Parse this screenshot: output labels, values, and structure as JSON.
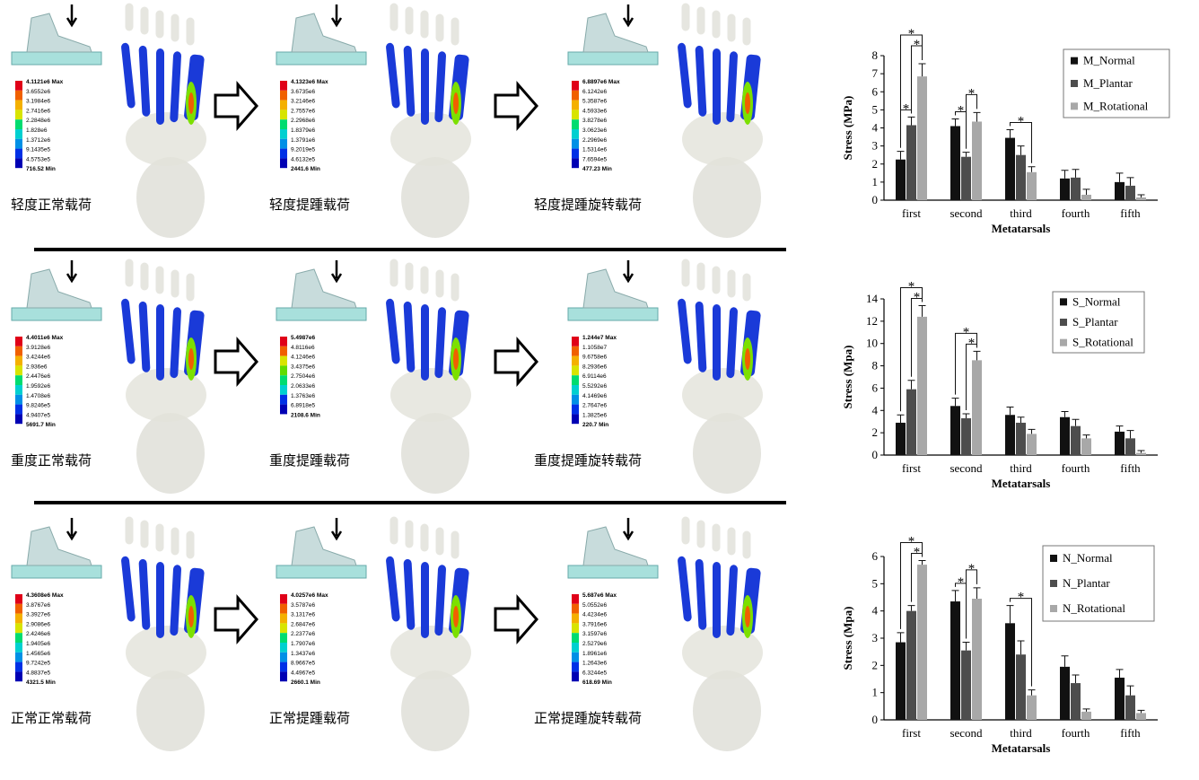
{
  "panels": [
    {
      "caption": "轻度正常载荷",
      "scale": [
        "4.1121e6 Max",
        "3.6552e6",
        "3.1984e6",
        "2.7416e6",
        "2.2848e6",
        "1.828e6",
        "1.3712e6",
        "9.1435e5",
        "4.5753e5",
        "716.52 Min"
      ]
    },
    {
      "caption": "轻度提踵载荷",
      "scale": [
        "4.1323e6 Max",
        "3.6735e6",
        "3.2146e6",
        "2.7557e6",
        "2.2968e6",
        "1.8379e6",
        "1.3791e6",
        "9.2019e5",
        "4.6132e5",
        "2441.6 Min"
      ]
    },
    {
      "caption": "轻度提踵旋转载荷",
      "scale": [
        "6.8897e6 Max",
        "6.1242e6",
        "5.3587e6",
        "4.5933e6",
        "3.8278e6",
        "3.0623e6",
        "2.2969e6",
        "1.5314e6",
        "7.6594e5",
        "477.23 Min"
      ]
    },
    {
      "caption": "重度正常载荷",
      "scale": [
        "4.4011e6 Max",
        "3.9128e6",
        "3.4244e6",
        "2.936e6",
        "2.4476e6",
        "1.9592e6",
        "1.4708e6",
        "9.8246e5",
        "4.9407e5",
        "5691.7 Min"
      ]
    },
    {
      "caption": "重度提踵载荷",
      "scale": [
        "5.4987e6",
        "4.8116e6",
        "4.1246e6",
        "3.4375e6",
        "2.7504e6",
        "2.0633e6",
        "1.3763e6",
        "6.8918e5",
        "2108.6 Min"
      ]
    },
    {
      "caption": "重度提踵旋转载荷",
      "scale": [
        "1.244e7 Max",
        "1.1058e7",
        "9.6758e6",
        "8.2936e6",
        "6.9114e6",
        "5.5292e6",
        "4.1469e6",
        "2.7647e6",
        "1.3825e6",
        "220.7 Min"
      ]
    },
    {
      "caption": "正常正常载荷",
      "scale": [
        "4.3608e6 Max",
        "3.8767e6",
        "3.3927e6",
        "2.9086e6",
        "2.4246e6",
        "1.9405e6",
        "1.4565e6",
        "9.7242e5",
        "4.8837e5",
        "4321.5 Min"
      ]
    },
    {
      "caption": "正常提踵载荷",
      "scale": [
        "4.0257e6 Max",
        "3.5787e6",
        "3.1317e6",
        "2.6847e6",
        "2.2377e6",
        "1.7907e6",
        "1.3437e6",
        "8.9667e5",
        "4.4967e5",
        "2660.1 Min"
      ]
    },
    {
      "caption": "正常提踵旋转载荷",
      "scale": [
        "5.687e6 Max",
        "5.0552e6",
        "4.4234e6",
        "3.7916e6",
        "3.1597e6",
        "2.5279e6",
        "1.8961e6",
        "1.2643e6",
        "6.3244e5",
        "618.69 Min"
      ]
    }
  ],
  "chart_data": [
    {
      "type": "bar",
      "xlabel": "Metatarsals",
      "ylabel": "Stress (MPa)",
      "categories": [
        "first",
        "second",
        "third",
        "fourth",
        "fifth"
      ],
      "ylim": [
        0,
        8
      ],
      "yticks": [
        0,
        1,
        2,
        3,
        4,
        5,
        6,
        7,
        8
      ],
      "legend": "upper right",
      "series": [
        {
          "name": "M_Normal",
          "color": "#111111",
          "values": [
            2.25,
            4.1,
            3.45,
            1.2,
            1.0
          ],
          "errors": [
            0.45,
            0.4,
            0.45,
            0.45,
            0.5
          ]
        },
        {
          "name": "M_Plantar",
          "color": "#4d4d4d",
          "values": [
            4.15,
            2.4,
            2.5,
            1.25,
            0.8
          ],
          "errors": [
            0.45,
            0.25,
            0.5,
            0.45,
            0.45
          ]
        },
        {
          "name": "M_Rotational",
          "color": "#a8a8a8",
          "values": [
            6.85,
            4.35,
            1.55,
            0.3,
            0.15
          ],
          "errors": [
            0.7,
            0.5,
            0.3,
            0.3,
            0.15
          ]
        }
      ],
      "significance": [
        {
          "category": 0,
          "from": 0,
          "to": 1,
          "label": "*"
        },
        {
          "category": 0,
          "from": 1,
          "to": 2,
          "label": "*"
        },
        {
          "category": 0,
          "from": 0,
          "to": 2,
          "label": "*"
        },
        {
          "category": 1,
          "from": 0,
          "to": 1,
          "label": "*"
        },
        {
          "category": 1,
          "from": 1,
          "to": 2,
          "label": "*"
        },
        {
          "category": 2,
          "from": 0,
          "to": 2,
          "label": "*"
        }
      ]
    },
    {
      "type": "bar",
      "xlabel": "Metatarsals",
      "ylabel": "Stress (Mpa)",
      "categories": [
        "first",
        "second",
        "third",
        "fourth",
        "fifth"
      ],
      "ylim": [
        0,
        14
      ],
      "yticks": [
        0,
        2,
        4,
        6,
        8,
        10,
        12,
        14
      ],
      "legend": "upper right",
      "series": [
        {
          "name": "S_Normal",
          "color": "#111111",
          "values": [
            2.9,
            4.4,
            3.6,
            3.4,
            2.1
          ],
          "errors": [
            0.7,
            0.7,
            0.7,
            0.5,
            0.5
          ]
        },
        {
          "name": "S_Plantar",
          "color": "#4d4d4d",
          "values": [
            5.9,
            3.3,
            2.9,
            2.6,
            1.5
          ],
          "errors": [
            0.8,
            0.4,
            0.5,
            0.6,
            0.7
          ]
        },
        {
          "name": "S_Rotational",
          "color": "#a8a8a8",
          "values": [
            12.4,
            8.5,
            1.9,
            1.5,
            0.2
          ],
          "errors": [
            1.0,
            0.8,
            0.4,
            0.3,
            0.2
          ]
        }
      ],
      "significance": [
        {
          "category": 0,
          "from": 1,
          "to": 2,
          "label": "*"
        },
        {
          "category": 0,
          "from": 0,
          "to": 2,
          "label": "*"
        },
        {
          "category": 1,
          "from": 1,
          "to": 2,
          "label": "*"
        },
        {
          "category": 1,
          "from": 0,
          "to": 2,
          "label": "*"
        }
      ]
    },
    {
      "type": "bar",
      "xlabel": "Metatarsals",
      "ylabel": "Stress (Mpa)",
      "categories": [
        "first",
        "second",
        "third",
        "fourth",
        "fifth"
      ],
      "ylim": [
        0,
        6
      ],
      "yticks": [
        0,
        1,
        2,
        3,
        4,
        5,
        6
      ],
      "legend": "upper right",
      "series": [
        {
          "name": "N_Normal",
          "color": "#111111",
          "values": [
            2.85,
            4.35,
            3.55,
            1.95,
            1.55
          ],
          "errors": [
            0.35,
            0.4,
            0.65,
            0.4,
            0.3
          ]
        },
        {
          "name": "N_Plantar",
          "color": "#4d4d4d",
          "values": [
            4.0,
            2.55,
            2.4,
            1.35,
            0.9
          ],
          "errors": [
            0.2,
            0.3,
            0.5,
            0.3,
            0.35
          ]
        },
        {
          "name": "N_Rotational",
          "color": "#a8a8a8",
          "values": [
            5.7,
            4.45,
            0.9,
            0.3,
            0.25
          ],
          "errors": [
            0.15,
            0.4,
            0.2,
            0.1,
            0.1
          ]
        }
      ],
      "significance": [
        {
          "category": 0,
          "from": 1,
          "to": 2,
          "label": "*"
        },
        {
          "category": 0,
          "from": 0,
          "to": 2,
          "label": "*"
        },
        {
          "category": 1,
          "from": 0,
          "to": 1,
          "label": "*"
        },
        {
          "category": 1,
          "from": 1,
          "to": 2,
          "label": "*"
        },
        {
          "category": 2,
          "from": 0,
          "to": 2,
          "label": "*"
        }
      ]
    }
  ]
}
